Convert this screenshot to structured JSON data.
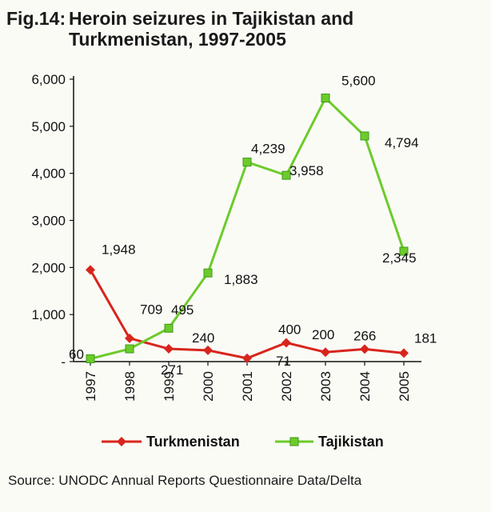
{
  "figure": {
    "number": "Fig.14:",
    "title_line1": "Heroin seizures in Tajikistan and",
    "title_line2": "Turkmenistan, 1997-2005",
    "source": "Source: UNODC Annual Reports Questionnaire Data/Delta"
  },
  "chart_data": {
    "type": "line",
    "categories": [
      "1997",
      "1998",
      "1999",
      "2000",
      "2001",
      "2002",
      "2003",
      "2004",
      "2005"
    ],
    "y_tick_labels": [
      "-",
      "1,000",
      "2,000",
      "3,000",
      "4,000",
      "5,000",
      "6,000"
    ],
    "ylim": [
      0,
      6000
    ],
    "grid": false,
    "legend_position": "bottom",
    "series": [
      {
        "name": "Turkmenistan",
        "color": "#d8251c",
        "marker": "diamond",
        "values": [
          1948,
          495,
          271,
          240,
          71,
          400,
          200,
          266,
          181
        ],
        "labels": [
          "1,948",
          "495",
          "271",
          "240",
          "71",
          "400",
          "200",
          "266",
          "181"
        ]
      },
      {
        "name": "Tajikistan",
        "color": "#6ccb2a",
        "marker": "square",
        "values": [
          60,
          271,
          709,
          1883,
          4239,
          3958,
          5600,
          4794,
          2345
        ],
        "labels": [
          "60",
          "",
          "709",
          "1,883",
          "4,239",
          "3,958",
          "5,600",
          "4,794",
          "2,345"
        ]
      }
    ]
  }
}
